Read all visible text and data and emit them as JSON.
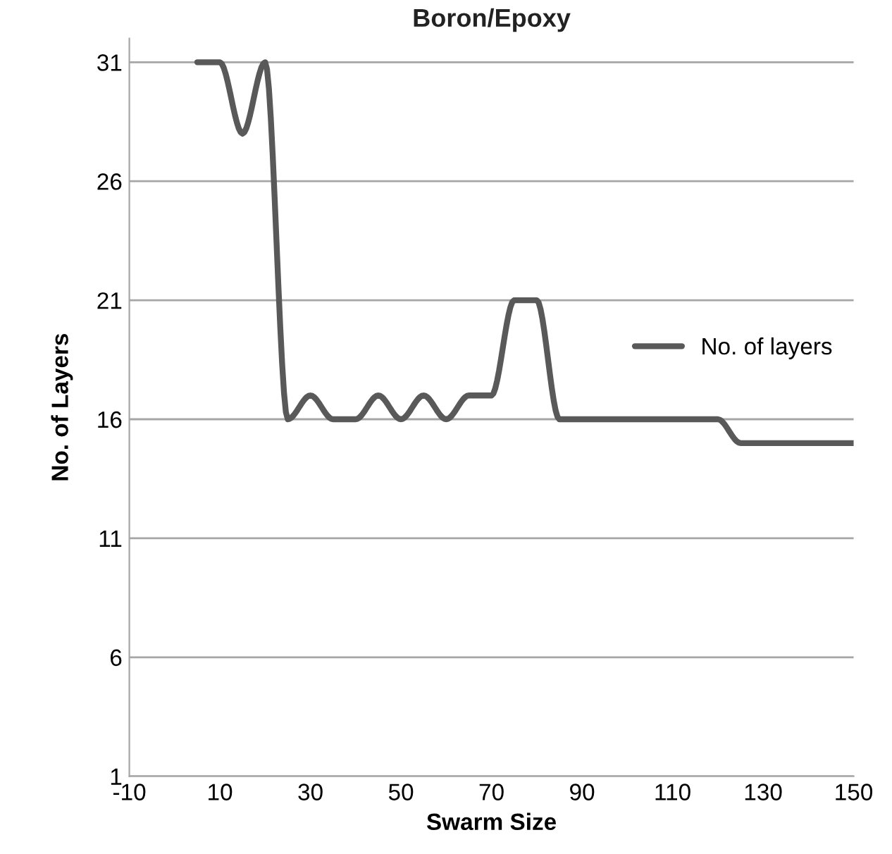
{
  "chart_data": {
    "type": "line",
    "title": "Boron/Epoxy",
    "xlabel": "Swarm Size",
    "ylabel": "No. of Layers",
    "x": [
      5,
      10,
      15,
      20,
      25,
      30,
      35,
      40,
      45,
      50,
      55,
      60,
      65,
      70,
      75,
      80,
      85,
      90,
      95,
      100,
      105,
      110,
      115,
      120,
      125,
      130,
      135,
      140,
      145,
      150
    ],
    "series": [
      {
        "name": "No. of layers",
        "color": "#595959",
        "values": [
          31,
          31,
          28,
          31,
          16,
          17,
          16,
          16,
          17,
          16,
          17,
          16,
          17,
          17,
          21,
          21,
          16,
          16,
          16,
          16,
          16,
          16,
          16,
          16,
          15,
          15,
          15,
          15,
          15,
          15
        ]
      }
    ],
    "xlim": [
      -10,
      150
    ],
    "xticks": [
      -10,
      10,
      30,
      50,
      70,
      90,
      110,
      130,
      150
    ],
    "ylim": [
      1,
      32
    ],
    "yticks": [
      1,
      6,
      11,
      16,
      21,
      26,
      31
    ],
    "grid": "y",
    "legend": "right",
    "marker": "none",
    "line_style": "solid"
  }
}
